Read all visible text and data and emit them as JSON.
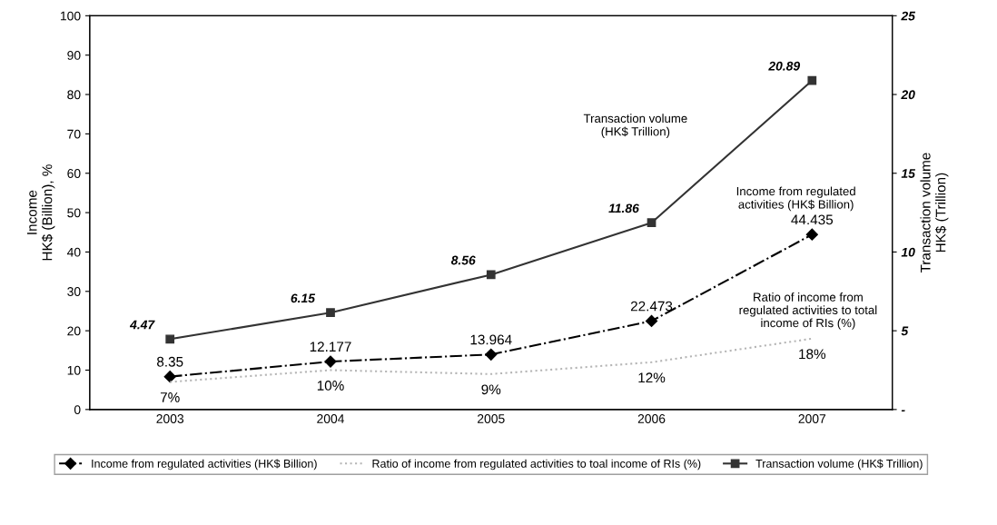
{
  "chart_data": {
    "type": "line",
    "ylabel": "Income\nHK$ (Billion), %",
    "y2label": "Transaction volume\nHK$ (Trillion)",
    "categories": [
      "2003",
      "2004",
      "2005",
      "2006",
      "2007"
    ],
    "ylim": [
      0,
      100
    ],
    "yticks": [
      0,
      10,
      20,
      30,
      40,
      50,
      60,
      70,
      80,
      90,
      100
    ],
    "y2lim": [
      0,
      25
    ],
    "y2ticks": [
      {
        "value": 0,
        "label": "-"
      },
      5,
      10,
      15,
      20,
      25
    ],
    "series": [
      {
        "name": "Income from regulated activities (HK$ Billion)",
        "color": "#000000",
        "values": [
          8.35,
          12.177,
          13.964,
          22.473,
          44.435
        ],
        "value_labels": [
          "8.35",
          "12.177",
          "13.964",
          "22.473",
          "44.435"
        ],
        "marker": "diamond",
        "line_style": "dashdot"
      },
      {
        "name": "Ratio of income from regulated activities to toal income of RIs (%)",
        "color": "#b5b5b5",
        "values": [
          7,
          10,
          9,
          12,
          18
        ],
        "value_labels": [
          "7%",
          "10%",
          "9%",
          "12%",
          "18%"
        ],
        "marker": "none",
        "line_style": "dotted"
      },
      {
        "name": "Transaction volume (HK$ Trillion)",
        "color": "#333333",
        "axis": "y2",
        "values": [
          4.47,
          6.15,
          8.56,
          11.86,
          20.89
        ],
        "value_labels": [
          "4.47",
          "6.15",
          "8.56",
          "11.86",
          "20.89"
        ],
        "marker": "square",
        "line_style": "solid"
      }
    ],
    "annotations": [
      "Transaction volume\n(HK$ Trillion)",
      "Income from regulated\nactivities (HK$ Billion)",
      "Ratio of income from\nregulated activities to total\nincome of RIs (%)"
    ],
    "legend": "bottom",
    "grid": false
  }
}
